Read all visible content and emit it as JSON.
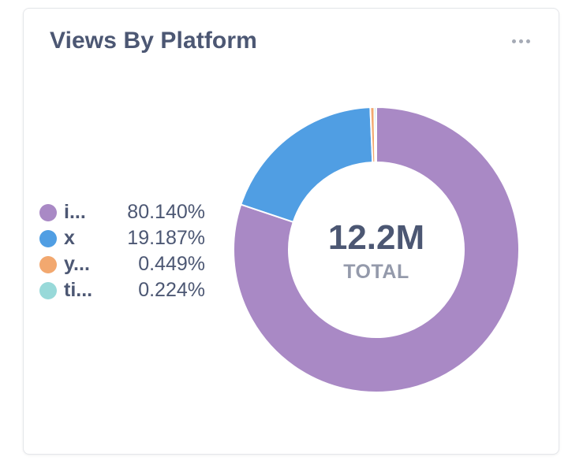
{
  "card": {
    "title": "Views By Platform",
    "menu_icon": "more-horizontal-icon"
  },
  "chart_data": {
    "type": "pie",
    "donut": true,
    "categories": [
      "i...",
      "x",
      "y...",
      "ti..."
    ],
    "values": [
      80.14,
      19.187,
      0.449,
      0.224
    ],
    "value_labels": [
      "80.140%",
      "19.187%",
      "0.449%",
      "0.224%"
    ],
    "colors": [
      "#a989c5",
      "#509ee3",
      "#f2a86f",
      "#98d9d9"
    ],
    "center_value": "12.2M",
    "center_label": "TOTAL",
    "legend_position": "left"
  }
}
